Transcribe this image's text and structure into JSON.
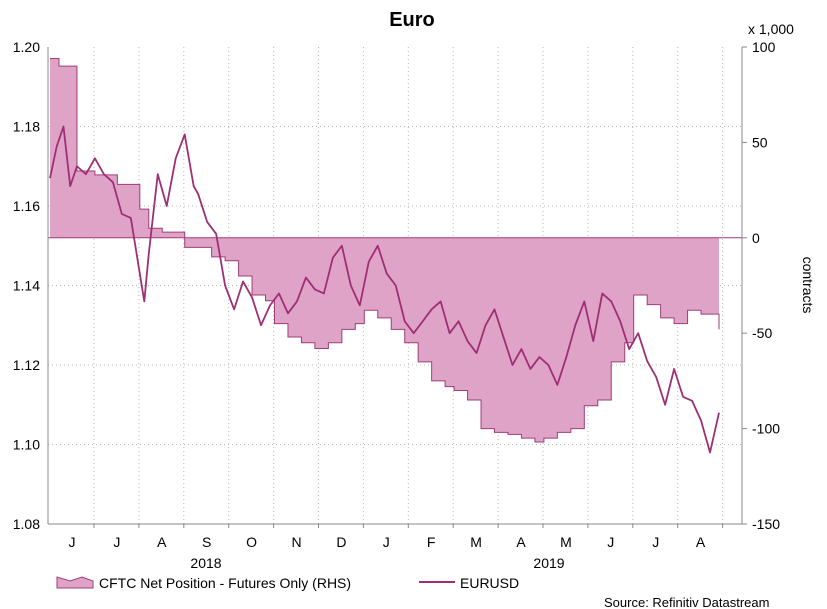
{
  "chart_data": {
    "type": "line+area",
    "title": "Euro",
    "y_left": {
      "ylim": [
        1.08,
        1.2
      ],
      "ticks": [
        "1.08",
        "1.10",
        "1.12",
        "1.14",
        "1.16",
        "1.18",
        "1.20"
      ]
    },
    "y_right": {
      "ylim": [
        -150,
        100
      ],
      "ticks": [
        "-150",
        "-100",
        "-50",
        "0",
        "50",
        "100"
      ],
      "label": "contracts",
      "multiplier": "x 1,000"
    },
    "x_axis": {
      "month_labels": [
        "J",
        "J",
        "A",
        "S",
        "O",
        "N",
        "D",
        "J",
        "F",
        "M",
        "A",
        "M",
        "J",
        "J",
        "A"
      ],
      "year_labels": [
        "2018",
        "2019"
      ]
    },
    "series": [
      {
        "name": "CFTC Net Position - Futures Only (RHS)",
        "axis": "right",
        "kind": "area",
        "color": "#e0a3c8",
        "edge_color": "#9e3d78",
        "x": [
          0,
          0.2,
          0.5,
          0.6,
          1.0,
          1.5,
          2.0,
          2.2,
          2.5,
          3.0,
          3.3,
          3.6,
          3.9,
          4.2,
          4.5,
          4.8,
          5.0,
          5.3,
          5.6,
          5.9,
          6.2,
          6.5,
          6.8,
          7.0,
          7.3,
          7.6,
          7.9,
          8.2,
          8.5,
          8.8,
          9.0,
          9.3,
          9.6,
          9.9,
          10.2,
          10.5,
          10.8,
          11.0,
          11.3,
          11.6,
          11.9,
          12.2,
          12.5,
          12.8,
          13.0,
          13.3,
          13.6,
          13.9,
          14.2,
          14.5,
          14.9
        ],
        "values": [
          94,
          90,
          90,
          35,
          33,
          28,
          15,
          5,
          3,
          -5,
          -5,
          -10,
          -12,
          -20,
          -30,
          -33,
          -45,
          -52,
          -55,
          -58,
          -55,
          -48,
          -45,
          -38,
          -42,
          -48,
          -55,
          -65,
          -75,
          -78,
          -80,
          -85,
          -100,
          -102,
          -103,
          -105,
          -107,
          -105,
          -102,
          -100,
          -88,
          -85,
          -65,
          -55,
          -30,
          -35,
          -42,
          -45,
          -38,
          -40,
          -48
        ]
      },
      {
        "name": "EURUSD",
        "axis": "left",
        "kind": "line",
        "color": "#9e2f74",
        "x": [
          0,
          0.15,
          0.3,
          0.45,
          0.6,
          0.8,
          1.0,
          1.2,
          1.4,
          1.6,
          1.8,
          2.0,
          2.1,
          2.2,
          2.4,
          2.6,
          2.8,
          3.0,
          3.2,
          3.3,
          3.5,
          3.7,
          3.9,
          4.1,
          4.3,
          4.5,
          4.7,
          4.9,
          5.1,
          5.3,
          5.5,
          5.7,
          5.9,
          6.1,
          6.3,
          6.5,
          6.7,
          6.9,
          7.1,
          7.3,
          7.5,
          7.7,
          7.9,
          8.1,
          8.3,
          8.5,
          8.7,
          8.9,
          9.1,
          9.3,
          9.5,
          9.7,
          9.9,
          10.1,
          10.3,
          10.5,
          10.7,
          10.9,
          11.1,
          11.3,
          11.5,
          11.7,
          11.9,
          12.1,
          12.3,
          12.5,
          12.7,
          12.9,
          13.1,
          13.3,
          13.5,
          13.7,
          13.9,
          14.1,
          14.3,
          14.5,
          14.7,
          14.9
        ],
        "values": [
          1.167,
          1.175,
          1.18,
          1.165,
          1.17,
          1.168,
          1.172,
          1.168,
          1.166,
          1.158,
          1.157,
          1.143,
          1.136,
          1.148,
          1.168,
          1.16,
          1.172,
          1.178,
          1.165,
          1.163,
          1.156,
          1.153,
          1.14,
          1.134,
          1.141,
          1.137,
          1.13,
          1.135,
          1.138,
          1.133,
          1.136,
          1.142,
          1.139,
          1.138,
          1.147,
          1.15,
          1.14,
          1.135,
          1.146,
          1.15,
          1.143,
          1.14,
          1.131,
          1.128,
          1.131,
          1.134,
          1.136,
          1.128,
          1.131,
          1.126,
          1.123,
          1.13,
          1.134,
          1.127,
          1.12,
          1.124,
          1.119,
          1.122,
          1.12,
          1.115,
          1.122,
          1.13,
          1.136,
          1.126,
          1.138,
          1.136,
          1.131,
          1.124,
          1.128,
          1.121,
          1.117,
          1.11,
          1.119,
          1.112,
          1.111,
          1.106,
          1.098,
          1.108
        ]
      }
    ],
    "legend": [
      "CFTC Net Position - Futures Only (RHS)",
      "EURUSD"
    ],
    "legend_position": "bottom",
    "grid": true,
    "source": "Source: Refinitiv Datastream"
  },
  "colors": {
    "area_fill": "#e0a3c8",
    "area_edge": "#9e3d78",
    "line": "#9e2f74",
    "grid": "#b9b9b9",
    "axis": "#888888"
  }
}
